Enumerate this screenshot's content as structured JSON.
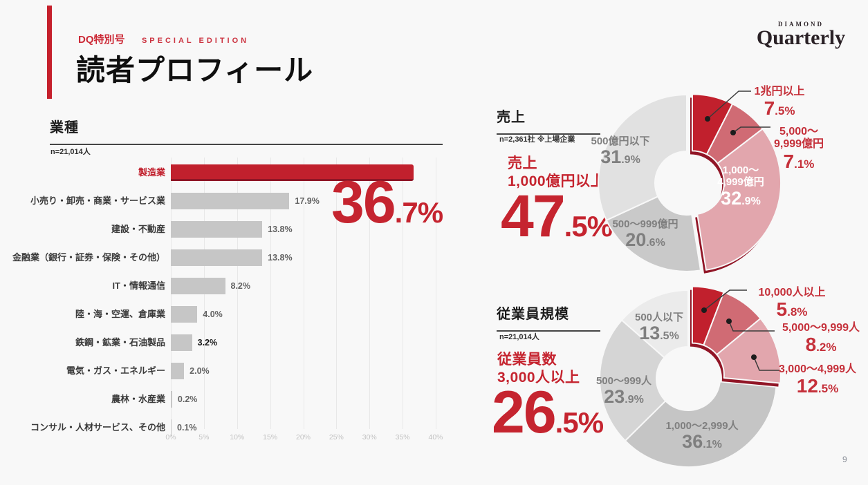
{
  "page": {
    "number": "9",
    "background": "#f8f8f8"
  },
  "header": {
    "edition_tag": "DQ特別号",
    "edition_subtag": "SPECIAL EDITION",
    "title": "読者プロフィール",
    "logo_top": "DIAMOND",
    "logo_main": "Quarterly",
    "accent_color": "#c5202c"
  },
  "chart_data": [
    {
      "type": "bar",
      "title": "業種",
      "n_label": "n=21,014人",
      "orientation": "horizontal",
      "xlim": [
        0,
        40
      ],
      "x_ticks": [
        "0%",
        "5%",
        "10%",
        "15%",
        "20%",
        "25%",
        "30%",
        "35%",
        "40%"
      ],
      "grid": true,
      "highlight": {
        "value": "36.7%"
      },
      "bar_color": "#c6c6c6",
      "highlight_color": "#c1202d",
      "rows": [
        {
          "label": "製造業",
          "value": 36.7,
          "value_label": "",
          "highlight": true
        },
        {
          "label": "小売り・卸売・商業・サービス業",
          "value": 17.9,
          "value_label": "17.9%"
        },
        {
          "label": "建設・不動産",
          "value": 13.8,
          "value_label": "13.8%"
        },
        {
          "label": "金融業（銀行・証券・保険・その他）",
          "value": 13.8,
          "value_label": "13.8%"
        },
        {
          "label": "IT・情報通信",
          "value": 8.2,
          "value_label": "8.2%"
        },
        {
          "label": "陸・海・空運、倉庫業",
          "value": 4.0,
          "value_label": "4.0%"
        },
        {
          "label": "鉄鋼・鉱業・石油製品",
          "value": 3.2,
          "value_label": "3.2%",
          "strong_value": true
        },
        {
          "label": "電気・ガス・エネルギー",
          "value": 2.0,
          "value_label": "2.0%"
        },
        {
          "label": "農林・水産業",
          "value": 0.2,
          "value_label": "0.2%"
        },
        {
          "label": "コンサル・人材サービス、その他",
          "value": 0.1,
          "value_label": "0.1%"
        }
      ]
    },
    {
      "type": "pie",
      "title": "売上",
      "n_label": "n=2,361社 ※上場企業",
      "highlight": {
        "line1": "売上",
        "line2": "1,000億円以上",
        "value": "47.5%"
      },
      "rim_color": "#911526",
      "slices": [
        {
          "label": "1兆円以上",
          "pct": "7.5%",
          "value": 7.5,
          "color": "#c1202d",
          "group": "red",
          "label_style": "leader"
        },
        {
          "label": "5,000～9,999億円",
          "label_lines": [
            "5,000～",
            "9,999億円"
          ],
          "pct": "7.1%",
          "value": 7.1,
          "color": "#d06b74",
          "group": "red",
          "label_style": "leader"
        },
        {
          "label": "1,000～4,999億円",
          "label_lines": [
            "1,000～",
            "4,999億円"
          ],
          "pct": "32.9%",
          "value": 32.9,
          "color": "#e2a6ad",
          "group": "red",
          "label_style": "inside",
          "text_color": "white"
        },
        {
          "label": "500～999億円",
          "pct": "20.6%",
          "value": 20.6,
          "color": "#c9c9c9",
          "label_style": "inside",
          "text_color": "gray"
        },
        {
          "label": "500億円以下",
          "pct": "31.9%",
          "value": 31.9,
          "color": "#e1e1e1",
          "label_style": "inside",
          "text_color": "gray"
        }
      ]
    },
    {
      "type": "pie",
      "title": "従業員規模",
      "n_label": "n=21,014人",
      "highlight": {
        "line1": "従業員数",
        "line2": "3,000人以上",
        "value": "26.5%"
      },
      "rim_color": "#911526",
      "slices": [
        {
          "label": "10,000人以上",
          "pct": "5.8%",
          "value": 5.8,
          "color": "#c1202d",
          "group": "red",
          "label_style": "leader"
        },
        {
          "label": "5,000～9,999人",
          "pct": "8.2%",
          "value": 8.2,
          "color": "#d06b74",
          "group": "red",
          "label_style": "leader"
        },
        {
          "label": "3,000～4,999人",
          "pct": "12.5%",
          "value": 12.5,
          "color": "#e2a6ad",
          "group": "red",
          "label_style": "leader"
        },
        {
          "label": "1,000～2,999人",
          "pct": "36.1%",
          "value": 36.1,
          "color": "#c5c5c5",
          "label_style": "inside",
          "text_color": "gray"
        },
        {
          "label": "500～999人",
          "pct": "23.9%",
          "value": 23.9,
          "color": "#d5d5d5",
          "label_style": "inside",
          "text_color": "gray"
        },
        {
          "label": "500人以下",
          "pct": "13.5%",
          "value": 13.5,
          "color": "#ebebeb",
          "label_style": "inside",
          "text_color": "gray"
        }
      ]
    }
  ]
}
